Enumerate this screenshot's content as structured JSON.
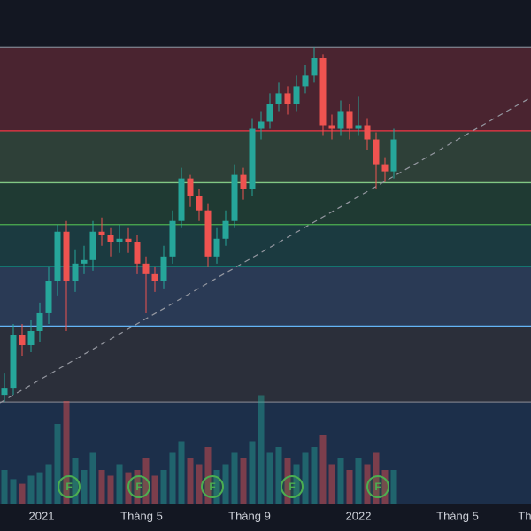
{
  "chart_data": {
    "type": "candlestick",
    "x": [
      0,
      1,
      2,
      3,
      4,
      5,
      6,
      7,
      8,
      9,
      10,
      11,
      12,
      13,
      14,
      15,
      16,
      17,
      18,
      19,
      20,
      21,
      22,
      23,
      24,
      25,
      26,
      27,
      28,
      29,
      30,
      31,
      32,
      33,
      34,
      35,
      36,
      37,
      38,
      39,
      40,
      41,
      42,
      43,
      44
    ],
    "open": [
      2,
      4,
      19,
      16,
      20,
      25,
      34,
      48,
      34,
      39,
      40,
      48,
      47,
      45,
      46,
      45,
      39,
      36,
      34,
      41,
      51,
      63,
      58,
      54,
      41,
      46,
      51,
      64,
      60,
      77,
      79,
      84,
      87,
      84,
      89,
      92,
      97,
      78,
      77,
      82,
      77,
      78,
      74,
      67,
      65
    ],
    "high": [
      8,
      22,
      22,
      23,
      28,
      38,
      50,
      51,
      43,
      44,
      51,
      52,
      49,
      50,
      49,
      47,
      41,
      38,
      44,
      54,
      66,
      64,
      60,
      56,
      49,
      54,
      67,
      66,
      80,
      82,
      87,
      90,
      89,
      92,
      95,
      100,
      98,
      81,
      85,
      84,
      86,
      80,
      76,
      69,
      77
    ],
    "low": [
      0,
      2,
      13,
      14,
      17,
      22,
      30,
      20,
      31,
      36,
      37,
      44,
      41,
      42,
      42,
      36,
      25,
      31,
      32,
      39,
      49,
      55,
      51,
      38,
      39,
      44,
      49,
      57,
      58,
      74,
      77,
      82,
      81,
      82,
      87,
      90,
      75,
      74,
      75,
      74,
      75,
      71,
      60,
      62,
      63
    ],
    "close": [
      4,
      19,
      16,
      20,
      25,
      34,
      48,
      34,
      39,
      40,
      48,
      47,
      45,
      46,
      45,
      39,
      36,
      34,
      41,
      51,
      63,
      58,
      54,
      41,
      46,
      51,
      64,
      60,
      77,
      79,
      84,
      87,
      84,
      89,
      92,
      97,
      78,
      77,
      82,
      77,
      78,
      74,
      67,
      65,
      74
    ],
    "volume": [
      30,
      22,
      18,
      25,
      28,
      35,
      70,
      90,
      40,
      30,
      45,
      30,
      25,
      35,
      28,
      30,
      40,
      25,
      30,
      45,
      55,
      40,
      35,
      50,
      30,
      35,
      45,
      40,
      55,
      95,
      45,
      50,
      40,
      35,
      45,
      50,
      60,
      35,
      40,
      30,
      40,
      35,
      45,
      30,
      30
    ],
    "up_color": "#26a69a",
    "down_color": "#ef5350",
    "ylim": [
      -28.9,
      113.3
    ],
    "vlim": [
      0,
      100
    ],
    "xlim": [
      -0.5,
      59.5
    ],
    "xticks": [
      {
        "value": 4.2,
        "label": "2021"
      },
      {
        "value": 15.5,
        "label": "Tháng 5"
      },
      {
        "value": 27.7,
        "label": "Tháng 9"
      },
      {
        "value": 40,
        "label": "2022"
      },
      {
        "value": 51.2,
        "label": "Tháng 5"
      },
      {
        "value": 58.8,
        "label": "Th"
      }
    ],
    "levels": [
      100,
      76.4,
      61.8,
      50,
      38.2,
      21.4,
      0
    ],
    "level_colors": [
      "#787b86",
      "#f23645",
      "#81c784",
      "#4caf50",
      "#089981",
      "#64b5f6",
      "#787b86"
    ],
    "band_colors": [
      "#4a2430",
      "#2e4038",
      "#1f3a33",
      "#1b3a40",
      "#2a3a55",
      "#2b2f3a",
      "#1c2f4a"
    ],
    "events": [
      "F",
      "F",
      "F",
      "F",
      "F"
    ]
  }
}
